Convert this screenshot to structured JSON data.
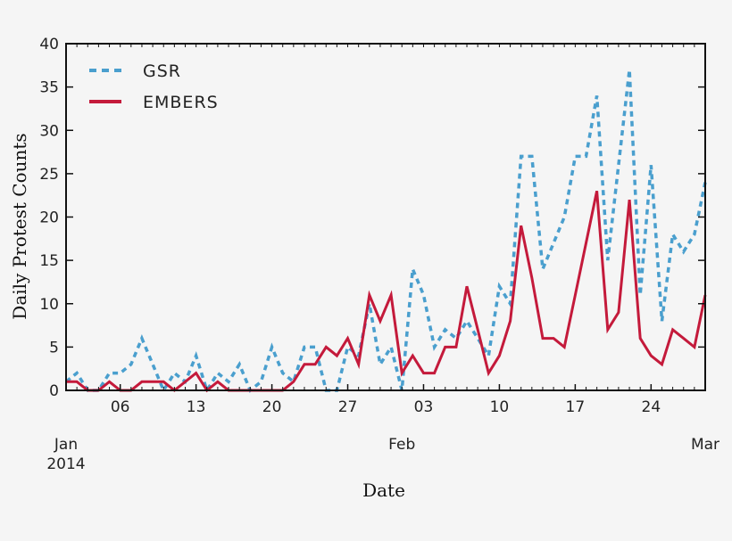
{
  "chart_data": {
    "type": "line",
    "title": "",
    "xlabel": "Date",
    "ylabel": "Daily Protest Counts",
    "ylim": [
      0,
      40
    ],
    "yticks": [
      0,
      5,
      10,
      15,
      20,
      25,
      30,
      35,
      40
    ],
    "grid": false,
    "legend_position": "upper left",
    "x_start": "2014-01-01",
    "x_end": "2014-03-01",
    "x_minor_tick_labels": [
      {
        "label": "06",
        "day_index": 5
      },
      {
        "label": "13",
        "day_index": 12
      },
      {
        "label": "20",
        "day_index": 19
      },
      {
        "label": "27",
        "day_index": 26
      },
      {
        "label": "03",
        "day_index": 33
      },
      {
        "label": "10",
        "day_index": 40
      },
      {
        "label": "17",
        "day_index": 47
      },
      {
        "label": "24",
        "day_index": 54
      }
    ],
    "x_major_tick_labels": [
      {
        "label": "Jan",
        "sublabel": "2014",
        "day_index": 0
      },
      {
        "label": "Feb",
        "sublabel": "",
        "day_index": 31
      },
      {
        "label": "Mar",
        "sublabel": "",
        "day_index": 59
      }
    ],
    "x": [
      "01-01",
      "01-02",
      "01-03",
      "01-04",
      "01-05",
      "01-06",
      "01-07",
      "01-08",
      "01-09",
      "01-10",
      "01-11",
      "01-12",
      "01-13",
      "01-14",
      "01-15",
      "01-16",
      "01-17",
      "01-18",
      "01-19",
      "01-20",
      "01-21",
      "01-22",
      "01-23",
      "01-24",
      "01-25",
      "01-26",
      "01-27",
      "01-28",
      "01-29",
      "01-30",
      "01-31",
      "02-01",
      "02-02",
      "02-03",
      "02-04",
      "02-05",
      "02-06",
      "02-07",
      "02-08",
      "02-09",
      "02-10",
      "02-11",
      "02-12",
      "02-13",
      "02-14",
      "02-15",
      "02-16",
      "02-17",
      "02-18",
      "02-19",
      "02-20",
      "02-21",
      "02-22",
      "02-23",
      "02-24",
      "02-25",
      "02-26",
      "02-27",
      "02-28",
      "03-01"
    ],
    "series": [
      {
        "name": "GSR",
        "style": "dashed",
        "color": "#4a9fce",
        "values": [
          1,
          2,
          0,
          0,
          2,
          2,
          3,
          6,
          3,
          0,
          2,
          1,
          4,
          0,
          2,
          1,
          3,
          0,
          1,
          5,
          2,
          1,
          5,
          5,
          0,
          0,
          5,
          4,
          10,
          3,
          5,
          0,
          14,
          11,
          5,
          7,
          6,
          8,
          6,
          4,
          12,
          10,
          27,
          27,
          14,
          17,
          20,
          27,
          27,
          34,
          15,
          26,
          37,
          11,
          26,
          8,
          18,
          16,
          18,
          24
        ]
      },
      {
        "name": "EMBERS",
        "style": "solid",
        "color": "#c41a3b",
        "values": [
          1,
          1,
          0,
          0,
          1,
          0,
          0,
          1,
          1,
          1,
          0,
          1,
          2,
          0,
          1,
          0,
          0,
          0,
          0,
          0,
          0,
          1,
          3,
          3,
          5,
          4,
          6,
          3,
          11,
          8,
          11,
          2,
          4,
          2,
          2,
          5,
          5,
          12,
          7,
          2,
          4,
          8,
          19,
          13,
          6,
          6,
          5,
          11,
          17,
          23,
          7,
          9,
          22,
          6,
          4,
          3,
          7,
          6,
          5,
          11
        ]
      }
    ]
  }
}
